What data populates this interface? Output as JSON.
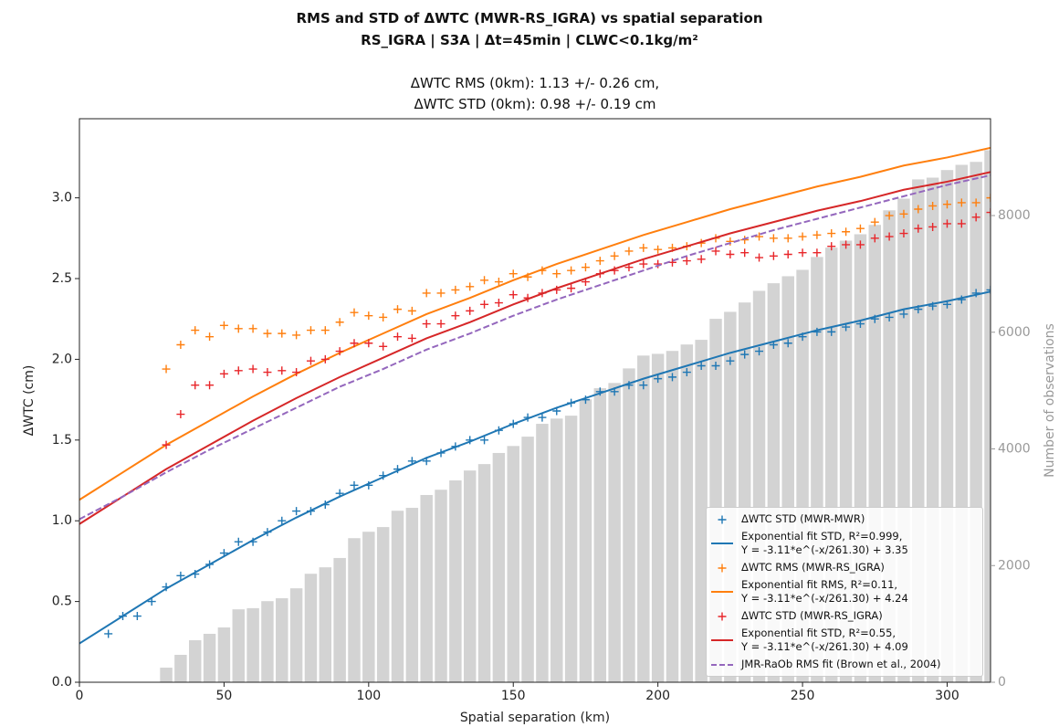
{
  "chart_data": {
    "type": "combo",
    "title": "RMS and STD of ΔWTC (MWR-RS_IGRA) vs spatial separation\nRS_IGRA | S3A | Δt=45min | CLWC<0.1kg/m²",
    "subtitle": "ΔWTC RMS (0km): 1.13 +/- 0.26 cm,\nΔWTC STD (0km): 0.98 +/- 0.19 cm",
    "x_label": "Spatial separation (km)",
    "y_label": "ΔWTC (cm)",
    "y2_label": "Number of observations",
    "xlim": [
      0,
      315
    ],
    "ylim": [
      0,
      3.49
    ],
    "y2lim": [
      0,
      9660
    ],
    "xticks": [
      0,
      50,
      100,
      150,
      200,
      250,
      300
    ],
    "yticks": [
      {
        "value": 0,
        "label": "0.0"
      },
      0.5,
      {
        "value": 1,
        "label": "1.0"
      },
      1.5,
      {
        "value": 2,
        "label": "2.0"
      },
      2.5,
      {
        "value": 3,
        "label": "3.0"
      }
    ],
    "y2ticks": [
      0,
      2000,
      4000,
      6000,
      8000
    ],
    "grid": false,
    "legend": "lower right",
    "series": [
      {
        "type": "bar",
        "axis": "y2",
        "color": "#d3d3d3",
        "x": [
          30,
          35,
          40,
          45,
          50,
          55,
          60,
          65,
          70,
          75,
          80,
          85,
          90,
          95,
          100,
          105,
          110,
          115,
          120,
          125,
          130,
          135,
          140,
          145,
          150,
          155,
          160,
          165,
          170,
          175,
          180,
          185,
          190,
          195,
          200,
          205,
          210,
          215,
          220,
          225,
          230,
          235,
          240,
          245,
          250,
          255,
          260,
          265,
          270,
          275,
          280,
          285,
          290,
          295,
          300,
          305,
          310,
          315
        ],
        "values": [
          250,
          470,
          720,
          830,
          940,
          1250,
          1270,
          1390,
          1440,
          1610,
          1860,
          1970,
          2130,
          2470,
          2580,
          2660,
          2940,
          2990,
          3210,
          3300,
          3460,
          3630,
          3740,
          3930,
          4050,
          4210,
          4430,
          4520,
          4570,
          4850,
          5040,
          5130,
          5380,
          5600,
          5630,
          5680,
          5790,
          5870,
          6230,
          6350,
          6510,
          6710,
          6840,
          6960,
          7070,
          7290,
          7450,
          7570,
          7680,
          7840,
          8090,
          8290,
          8620,
          8650,
          8780,
          8870,
          8920,
          9120
        ]
      },
      {
        "type": "scatter",
        "name": "ΔWTC STD (MWR-MWR)",
        "color": "#1f77b4",
        "x": [
          10,
          15,
          20,
          25,
          30,
          35,
          40,
          45,
          50,
          55,
          60,
          65,
          70,
          75,
          80,
          85,
          90,
          95,
          100,
          105,
          110,
          115,
          120,
          125,
          130,
          135,
          140,
          145,
          150,
          155,
          160,
          165,
          170,
          175,
          180,
          185,
          190,
          195,
          200,
          205,
          210,
          215,
          220,
          225,
          230,
          235,
          240,
          245,
          250,
          255,
          260,
          265,
          270,
          275,
          280,
          285,
          290,
          295,
          300,
          305,
          310,
          315
        ],
        "values": [
          0.3,
          0.41,
          0.41,
          0.5,
          0.59,
          0.66,
          0.67,
          0.73,
          0.8,
          0.87,
          0.87,
          0.93,
          1.0,
          1.06,
          1.06,
          1.1,
          1.17,
          1.22,
          1.22,
          1.28,
          1.32,
          1.37,
          1.37,
          1.42,
          1.46,
          1.5,
          1.5,
          1.56,
          1.6,
          1.64,
          1.64,
          1.68,
          1.73,
          1.75,
          1.8,
          1.8,
          1.84,
          1.84,
          1.88,
          1.89,
          1.92,
          1.96,
          1.96,
          1.99,
          2.03,
          2.05,
          2.09,
          2.1,
          2.14,
          2.17,
          2.17,
          2.2,
          2.22,
          2.25,
          2.26,
          2.28,
          2.31,
          2.33,
          2.34,
          2.37,
          2.41,
          2.43
        ]
      },
      {
        "type": "line",
        "name": "Exponential fit STD, R²=0.999,\nY = -3.11*e^(-x/261.30) + 3.35",
        "color": "#1f77b4",
        "x": [
          0,
          15,
          30,
          45,
          60,
          75,
          90,
          105,
          120,
          135,
          150,
          165,
          180,
          195,
          210,
          225,
          240,
          255,
          270,
          285,
          300,
          315
        ],
        "values": [
          0.24,
          0.41,
          0.58,
          0.73,
          0.88,
          1.02,
          1.15,
          1.27,
          1.39,
          1.49,
          1.6,
          1.7,
          1.79,
          1.88,
          1.96,
          2.04,
          2.11,
          2.18,
          2.24,
          2.31,
          2.36,
          2.42
        ]
      },
      {
        "type": "scatter",
        "name": "ΔWTC RMS (MWR-RS_IGRA)",
        "color": "#ff7f0e",
        "x": [
          30,
          35,
          40,
          45,
          50,
          55,
          60,
          65,
          70,
          75,
          80,
          85,
          90,
          95,
          100,
          105,
          110,
          115,
          120,
          125,
          130,
          135,
          140,
          145,
          150,
          155,
          160,
          165,
          170,
          175,
          180,
          185,
          190,
          195,
          200,
          205,
          210,
          215,
          220,
          225,
          230,
          235,
          240,
          245,
          250,
          255,
          260,
          265,
          270,
          275,
          280,
          285,
          290,
          295,
          300,
          305,
          310,
          315
        ],
        "values": [
          1.94,
          2.09,
          2.18,
          2.14,
          2.21,
          2.19,
          2.19,
          2.16,
          2.16,
          2.15,
          2.18,
          2.18,
          2.23,
          2.29,
          2.27,
          2.26,
          2.31,
          2.3,
          2.41,
          2.41,
          2.43,
          2.45,
          2.49,
          2.48,
          2.53,
          2.51,
          2.55,
          2.53,
          2.55,
          2.57,
          2.61,
          2.64,
          2.67,
          2.69,
          2.68,
          2.69,
          2.7,
          2.72,
          2.75,
          2.73,
          2.74,
          2.76,
          2.75,
          2.75,
          2.76,
          2.77,
          2.78,
          2.79,
          2.81,
          2.85,
          2.89,
          2.9,
          2.93,
          2.95,
          2.96,
          2.97,
          2.97,
          3.0
        ]
      },
      {
        "type": "line",
        "name": "Exponential fit RMS, R²=0.11,\nY = -3.11*e^(-x/261.30) + 4.24",
        "color": "#ff7f0e",
        "x": [
          0,
          15,
          30,
          45,
          60,
          75,
          90,
          105,
          120,
          135,
          150,
          165,
          180,
          195,
          210,
          225,
          240,
          255,
          270,
          285,
          300,
          315
        ],
        "values": [
          1.13,
          1.3,
          1.47,
          1.62,
          1.77,
          1.91,
          2.04,
          2.16,
          2.28,
          2.38,
          2.49,
          2.59,
          2.68,
          2.77,
          2.85,
          2.93,
          3.0,
          3.07,
          3.13,
          3.2,
          3.25,
          3.31
        ]
      },
      {
        "type": "scatter",
        "name": "ΔWTC STD (MWR-RS_IGRA)",
        "color": "#e8262a",
        "x": [
          30,
          35,
          40,
          45,
          50,
          55,
          60,
          65,
          70,
          75,
          80,
          85,
          90,
          95,
          100,
          105,
          110,
          115,
          120,
          125,
          130,
          135,
          140,
          145,
          150,
          155,
          160,
          165,
          170,
          175,
          180,
          185,
          190,
          195,
          200,
          205,
          210,
          215,
          220,
          225,
          230,
          235,
          240,
          245,
          250,
          255,
          260,
          265,
          270,
          275,
          280,
          285,
          290,
          295,
          300,
          305,
          310,
          315
        ],
        "values": [
          1.47,
          1.66,
          1.84,
          1.84,
          1.91,
          1.93,
          1.94,
          1.92,
          1.93,
          1.92,
          1.99,
          2.0,
          2.05,
          2.1,
          2.1,
          2.08,
          2.14,
          2.13,
          2.22,
          2.22,
          2.27,
          2.3,
          2.34,
          2.35,
          2.4,
          2.38,
          2.41,
          2.43,
          2.44,
          2.48,
          2.53,
          2.55,
          2.57,
          2.59,
          2.59,
          2.6,
          2.61,
          2.62,
          2.67,
          2.65,
          2.66,
          2.63,
          2.64,
          2.65,
          2.66,
          2.66,
          2.7,
          2.71,
          2.71,
          2.75,
          2.76,
          2.78,
          2.81,
          2.82,
          2.84,
          2.84,
          2.88,
          2.91
        ]
      },
      {
        "type": "line",
        "name": "Exponential fit STD, R²=0.55,\nY = -3.11*e^(-x/261.30) + 4.09",
        "color": "#d62728",
        "x": [
          0,
          15,
          30,
          45,
          60,
          75,
          90,
          105,
          120,
          135,
          150,
          165,
          180,
          195,
          210,
          225,
          240,
          255,
          270,
          285,
          300,
          315
        ],
        "values": [
          0.98,
          1.15,
          1.32,
          1.47,
          1.62,
          1.76,
          1.89,
          2.01,
          2.13,
          2.23,
          2.34,
          2.44,
          2.53,
          2.62,
          2.7,
          2.78,
          2.85,
          2.92,
          2.98,
          3.05,
          3.1,
          3.16
        ]
      },
      {
        "type": "line",
        "name": "JMR-RaOb RMS fit (Brown et al., 2004)",
        "color": "#9467bd",
        "dashed": true,
        "x": [
          0,
          15,
          30,
          45,
          60,
          75,
          90,
          105,
          120,
          135,
          150,
          165,
          180,
          195,
          210,
          225,
          240,
          255,
          270,
          285,
          300,
          315
        ],
        "values": [
          1.01,
          1.15,
          1.3,
          1.44,
          1.57,
          1.7,
          1.83,
          1.94,
          2.06,
          2.16,
          2.27,
          2.37,
          2.46,
          2.55,
          2.64,
          2.72,
          2.8,
          2.87,
          2.94,
          3.01,
          3.08,
          3.14
        ]
      }
    ]
  }
}
